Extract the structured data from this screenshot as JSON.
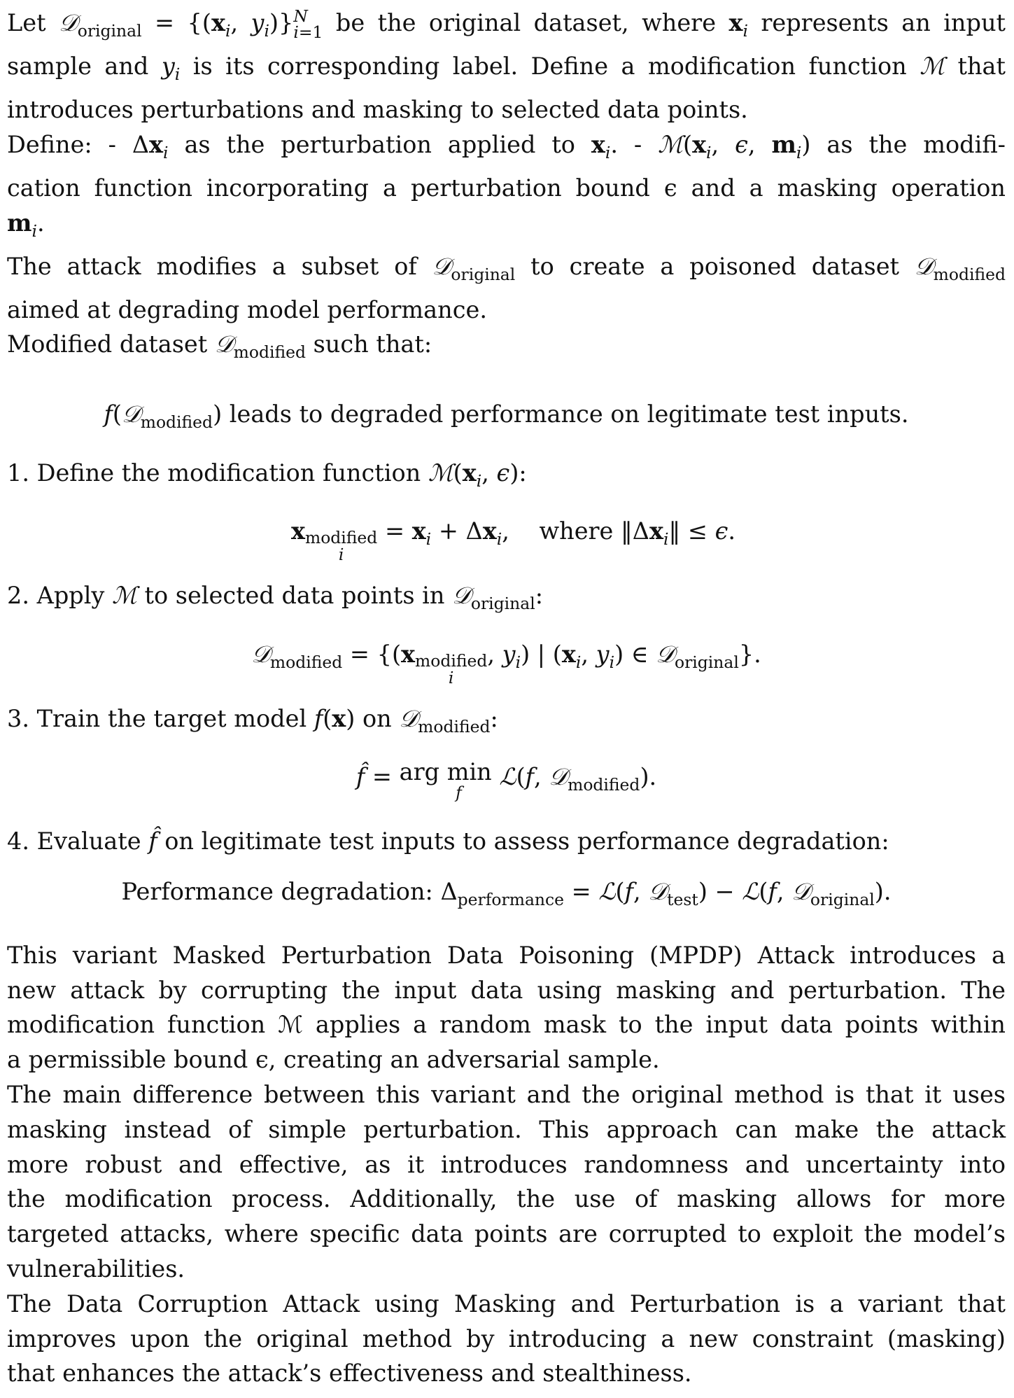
{
  "intro": {
    "line1_a": "Let ",
    "line1_b": " be the original dataset, where ",
    "line1_c": " represents an input",
    "line2": "sample and y",
    "line2_b": " is its corresponding label. Define a modification function ",
    "line2_c": " that",
    "line3": "introduces perturbations and masking to selected data points."
  },
  "define": {
    "line1_a": "Define: - Δ",
    "line1_b": " as the perturbation applied to ",
    "line1_c": ". - ",
    "line1_d": " as the modifi-",
    "line2": "cation function incorporating a perturbation bound ϵ and a masking operation",
    "line3": "."
  },
  "attack": {
    "line1_a": "The attack modifies a subset of ",
    "line1_b": " to create a poisoned dataset ",
    "line2": "aimed at degrading model performance.",
    "line3_a": "Modified dataset ",
    "line3_b": " such that:"
  },
  "display_degraded": " leads to degraded performance on legitimate test inputs.",
  "steps": [
    {
      "num": "1.",
      "text": "Define the modification function "
    },
    {
      "num": "2.",
      "text": "Apply ",
      "text_b": " to selected data points in "
    },
    {
      "num": "3.",
      "text": "Train the target model ",
      "text_b": " on "
    },
    {
      "num": "4.",
      "text": "Evaluate ",
      "text_b": " on legitimate test inputs to assess performance degradation:"
    }
  ],
  "eq": {
    "where": "where",
    "argmin": "arg min",
    "perf_label": "Performance degradation: "
  },
  "para1": [
    "This variant Masked Perturbation Data Poisoning (MPDP) Attack introduces a",
    "new attack by corrupting the input data using masking and perturbation. The",
    "modification function ℳ applies a random mask to the input data points within",
    "a permissible bound ϵ, creating an adversarial sample."
  ],
  "para2": [
    "The main difference between this variant and the original method is that it uses",
    "masking instead of simple perturbation.  This approach can make the attack",
    "more robust and effective, as it introduces randomness and uncertainty into",
    "the modification process.  Additionally, the use of masking allows for more",
    "targeted attacks, where specific data points are corrupted to exploit the model’s",
    "vulnerabilities."
  ],
  "para3": [
    "The Data Corruption Attack using Masking and Perturbation is a variant that",
    "improves upon the original method by introducing a new constraint (masking)",
    "that enhances the attack’s effectiveness and stealthiness."
  ]
}
